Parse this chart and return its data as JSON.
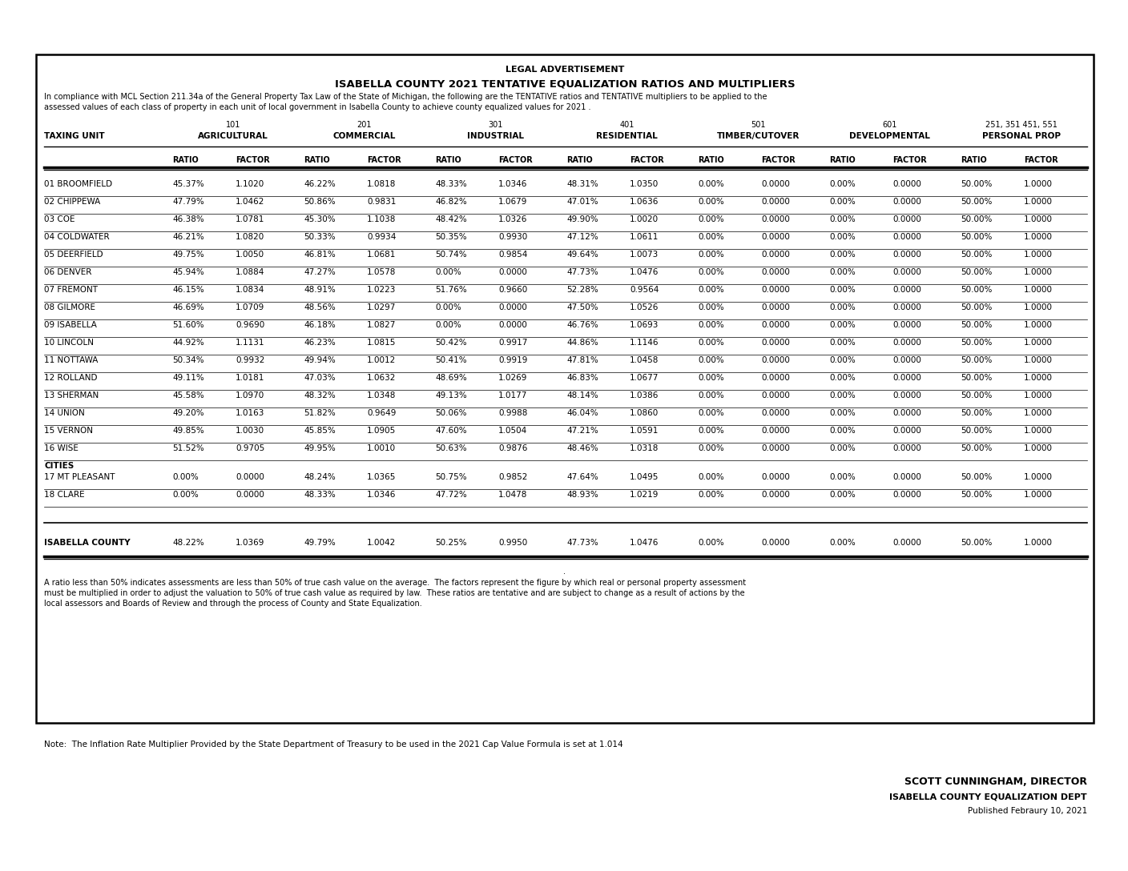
{
  "title1": "LEGAL ADVERTISEMENT",
  "title2": "ISABELLA COUNTY 2021 TENTATIVE EQUALIZATION RATIOS AND MULTIPLIERS",
  "intro_line1": "In compliance with MCL Section 211.34a of the General Property Tax Law of the State of Michigan, the following are the TENTATIVE ratios and TENTATIVE multipliers to be applied to the",
  "intro_line2": "assessed values of each class of property in each unit of local government in Isabella County to achieve county equalized values for 2021 .",
  "col_groups": [
    {
      "code": "101",
      "name": "AGRICULTURAL"
    },
    {
      "code": "201",
      "name": "COMMERCIAL"
    },
    {
      "code": "301",
      "name": "INDUSTRIAL"
    },
    {
      "code": "401",
      "name": "RESIDENTIAL"
    },
    {
      "code": "501",
      "name": "TIMBER/CUTOVER"
    },
    {
      "code": "601",
      "name": "DEVELOPMENTAL"
    },
    {
      "code": "251, 351 451, 551",
      "name": "PERSONAL PROP"
    }
  ],
  "taxing_unit_label": "TAXING UNIT",
  "rows": [
    {
      "name": "01 BROOMFIELD",
      "data": [
        "45.37%",
        "1.1020",
        "46.22%",
        "1.0818",
        "48.33%",
        "1.0346",
        "48.31%",
        "1.0350",
        "0.00%",
        "0.0000",
        "0.00%",
        "0.0000",
        "50.00%",
        "1.0000"
      ]
    },
    {
      "name": "02 CHIPPEWA",
      "data": [
        "47.79%",
        "1.0462",
        "50.86%",
        "0.9831",
        "46.82%",
        "1.0679",
        "47.01%",
        "1.0636",
        "0.00%",
        "0.0000",
        "0.00%",
        "0.0000",
        "50.00%",
        "1.0000"
      ]
    },
    {
      "name": "03 COE",
      "data": [
        "46.38%",
        "1.0781",
        "45.30%",
        "1.1038",
        "48.42%",
        "1.0326",
        "49.90%",
        "1.0020",
        "0.00%",
        "0.0000",
        "0.00%",
        "0.0000",
        "50.00%",
        "1.0000"
      ]
    },
    {
      "name": "04 COLDWATER",
      "data": [
        "46.21%",
        "1.0820",
        "50.33%",
        "0.9934",
        "50.35%",
        "0.9930",
        "47.12%",
        "1.0611",
        "0.00%",
        "0.0000",
        "0.00%",
        "0.0000",
        "50.00%",
        "1.0000"
      ]
    },
    {
      "name": "05 DEERFIELD",
      "data": [
        "49.75%",
        "1.0050",
        "46.81%",
        "1.0681",
        "50.74%",
        "0.9854",
        "49.64%",
        "1.0073",
        "0.00%",
        "0.0000",
        "0.00%",
        "0.0000",
        "50.00%",
        "1.0000"
      ]
    },
    {
      "name": "06 DENVER",
      "data": [
        "45.94%",
        "1.0884",
        "47.27%",
        "1.0578",
        "0.00%",
        "0.0000",
        "47.73%",
        "1.0476",
        "0.00%",
        "0.0000",
        "0.00%",
        "0.0000",
        "50.00%",
        "1.0000"
      ]
    },
    {
      "name": "07 FREMONT",
      "data": [
        "46.15%",
        "1.0834",
        "48.91%",
        "1.0223",
        "51.76%",
        "0.9660",
        "52.28%",
        "0.9564",
        "0.00%",
        "0.0000",
        "0.00%",
        "0.0000",
        "50.00%",
        "1.0000"
      ]
    },
    {
      "name": "08 GILMORE",
      "data": [
        "46.69%",
        "1.0709",
        "48.56%",
        "1.0297",
        "0.00%",
        "0.0000",
        "47.50%",
        "1.0526",
        "0.00%",
        "0.0000",
        "0.00%",
        "0.0000",
        "50.00%",
        "1.0000"
      ]
    },
    {
      "name": "09 ISABELLA",
      "data": [
        "51.60%",
        "0.9690",
        "46.18%",
        "1.0827",
        "0.00%",
        "0.0000",
        "46.76%",
        "1.0693",
        "0.00%",
        "0.0000",
        "0.00%",
        "0.0000",
        "50.00%",
        "1.0000"
      ]
    },
    {
      "name": "10 LINCOLN",
      "data": [
        "44.92%",
        "1.1131",
        "46.23%",
        "1.0815",
        "50.42%",
        "0.9917",
        "44.86%",
        "1.1146",
        "0.00%",
        "0.0000",
        "0.00%",
        "0.0000",
        "50.00%",
        "1.0000"
      ]
    },
    {
      "name": "11 NOTTAWA",
      "data": [
        "50.34%",
        "0.9932",
        "49.94%",
        "1.0012",
        "50.41%",
        "0.9919",
        "47.81%",
        "1.0458",
        "0.00%",
        "0.0000",
        "0.00%",
        "0.0000",
        "50.00%",
        "1.0000"
      ]
    },
    {
      "name": "12 ROLLAND",
      "data": [
        "49.11%",
        "1.0181",
        "47.03%",
        "1.0632",
        "48.69%",
        "1.0269",
        "46.83%",
        "1.0677",
        "0.00%",
        "0.0000",
        "0.00%",
        "0.0000",
        "50.00%",
        "1.0000"
      ]
    },
    {
      "name": "13 SHERMAN",
      "data": [
        "45.58%",
        "1.0970",
        "48.32%",
        "1.0348",
        "49.13%",
        "1.0177",
        "48.14%",
        "1.0386",
        "0.00%",
        "0.0000",
        "0.00%",
        "0.0000",
        "50.00%",
        "1.0000"
      ]
    },
    {
      "name": "14 UNION",
      "data": [
        "49.20%",
        "1.0163",
        "51.82%",
        "0.9649",
        "50.06%",
        "0.9988",
        "46.04%",
        "1.0860",
        "0.00%",
        "0.0000",
        "0.00%",
        "0.0000",
        "50.00%",
        "1.0000"
      ]
    },
    {
      "name": "15 VERNON",
      "data": [
        "49.85%",
        "1.0030",
        "45.85%",
        "1.0905",
        "47.60%",
        "1.0504",
        "47.21%",
        "1.0591",
        "0.00%",
        "0.0000",
        "0.00%",
        "0.0000",
        "50.00%",
        "1.0000"
      ]
    },
    {
      "name": "16 WISE",
      "data": [
        "51.52%",
        "0.9705",
        "49.95%",
        "1.0010",
        "50.63%",
        "0.9876",
        "48.46%",
        "1.0318",
        "0.00%",
        "0.0000",
        "0.00%",
        "0.0000",
        "50.00%",
        "1.0000"
      ]
    }
  ],
  "cities_label": "CITIES",
  "city_rows": [
    {
      "name": "17 MT PLEASANT",
      "data": [
        "0.00%",
        "0.0000",
        "48.24%",
        "1.0365",
        "50.75%",
        "0.9852",
        "47.64%",
        "1.0495",
        "0.00%",
        "0.0000",
        "0.00%",
        "0.0000",
        "50.00%",
        "1.0000"
      ]
    },
    {
      "name": "18 CLARE",
      "data": [
        "0.00%",
        "0.0000",
        "48.33%",
        "1.0346",
        "47.72%",
        "1.0478",
        "48.93%",
        "1.0219",
        "0.00%",
        "0.0000",
        "0.00%",
        "0.0000",
        "50.00%",
        "1.0000"
      ]
    }
  ],
  "county_row": {
    "name": "ISABELLA COUNTY",
    "data": [
      "48.22%",
      "1.0369",
      "49.79%",
      "1.0042",
      "50.25%",
      "0.9950",
      "47.73%",
      "1.0476",
      "0.00%",
      "0.0000",
      "0.00%",
      "0.0000",
      "50.00%",
      "1.0000"
    ]
  },
  "footnote_line1": "A ratio less than 50% indicates assessments are less than 50% of true cash value on the average.  The factors represent the figure by which real or personal property assessment",
  "footnote_line2": "must be multiplied in order to adjust the valuation to 50% of true cash value as required by law.  These ratios are tentative and are subject to change as a result of actions by the",
  "footnote_line3": "local assessors and Boards of Review and through the process of County and State Equalization.",
  "note": "Note:  The Inflation Rate Multiplier Provided by the State Department of Treasury to be used in the 2021 Cap Value Formula is set at 1.014",
  "director": "SCOTT CUNNINGHAM, DIRECTOR",
  "dept": "ISABELLA COUNTY EQUALIZATION DEPT",
  "published": "Published Febraury 10, 2021",
  "bg_color": "#ffffff"
}
